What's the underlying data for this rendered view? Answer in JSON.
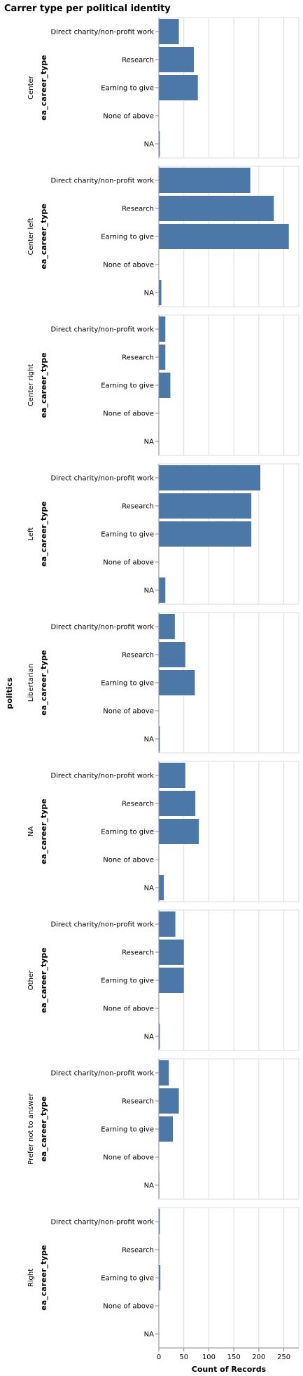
{
  "chart_data": {
    "type": "bar",
    "orientation": "horizontal",
    "title": "Carrer type per political identity",
    "row_field": "politics",
    "y_title": "ea_career_type",
    "x_title": "Count of Records",
    "x_ticks": [
      0,
      50,
      100,
      150,
      200,
      250
    ],
    "xlim": [
      0,
      280
    ],
    "grid": true,
    "bar_color": "#4c78a8",
    "categories": [
      "Direct charity/non-profit work",
      "Research",
      "Earning to give",
      "None of above",
      "NA"
    ],
    "facets": [
      {
        "name": "Center",
        "values": [
          40,
          70,
          78,
          0,
          2
        ]
      },
      {
        "name": "Center left",
        "values": [
          183,
          230,
          260,
          0,
          5
        ]
      },
      {
        "name": "Center right",
        "values": [
          13,
          13,
          23,
          0,
          0
        ]
      },
      {
        "name": "Left",
        "values": [
          203,
          185,
          185,
          0,
          13
        ]
      },
      {
        "name": "Libertarian",
        "values": [
          32,
          53,
          72,
          0,
          2
        ]
      },
      {
        "name": "NA",
        "values": [
          53,
          73,
          80,
          0,
          10
        ]
      },
      {
        "name": "Other",
        "values": [
          33,
          50,
          50,
          0,
          2
        ]
      },
      {
        "name": "Prefer not to answer",
        "values": [
          20,
          40,
          28,
          0,
          1
        ]
      },
      {
        "name": "Right",
        "values": [
          2,
          1,
          3,
          0,
          0
        ]
      }
    ]
  }
}
